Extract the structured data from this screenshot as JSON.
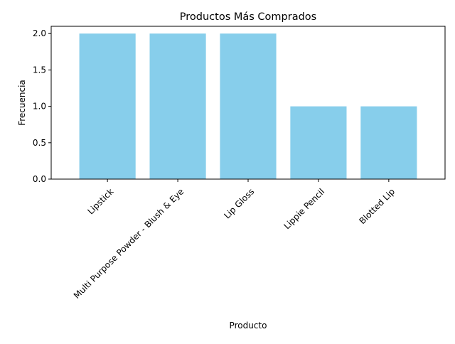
{
  "chart_data": {
    "type": "bar",
    "title": "Productos Más Comprados",
    "xlabel": "Producto",
    "ylabel": "Frecuencia",
    "categories": [
      "Lipstick",
      "Multi Purpose Powder - Blush & Eye",
      "Lip Gloss",
      "Lippie Pencil",
      "Blotted Lip"
    ],
    "values": [
      2,
      2,
      2,
      1,
      1
    ],
    "ylim": [
      0,
      2.1
    ],
    "yticks": [
      0.0,
      0.5,
      1.0,
      1.5,
      2.0
    ],
    "ytick_labels": [
      "0.0",
      "0.5",
      "1.0",
      "1.5",
      "2.0"
    ],
    "bar_color": "#87CEEB",
    "grid": false,
    "legend": "none",
    "xtick_rotation": "45 degrees, right-aligned"
  }
}
